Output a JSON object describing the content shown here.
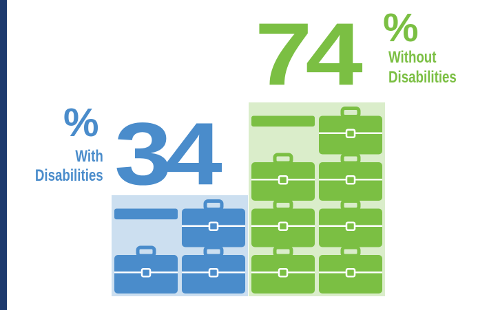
{
  "chart_data": {
    "type": "bar",
    "categories": [
      "With Disabilities",
      "Without Disabilities"
    ],
    "values": [
      34,
      74
    ],
    "unit": "%",
    "colors": {
      "with": "#4a8ccb",
      "without": "#7bbf43",
      "frame": "#1e3a6e"
    },
    "icon": "briefcase-icon"
  },
  "labels": {
    "with_number": "34",
    "with_percent": "%",
    "with_line1": "With",
    "with_line2": "Disabilities",
    "without_number": "74",
    "without_percent": "%",
    "without_line1": "Without",
    "without_line2": "Disabilities"
  }
}
